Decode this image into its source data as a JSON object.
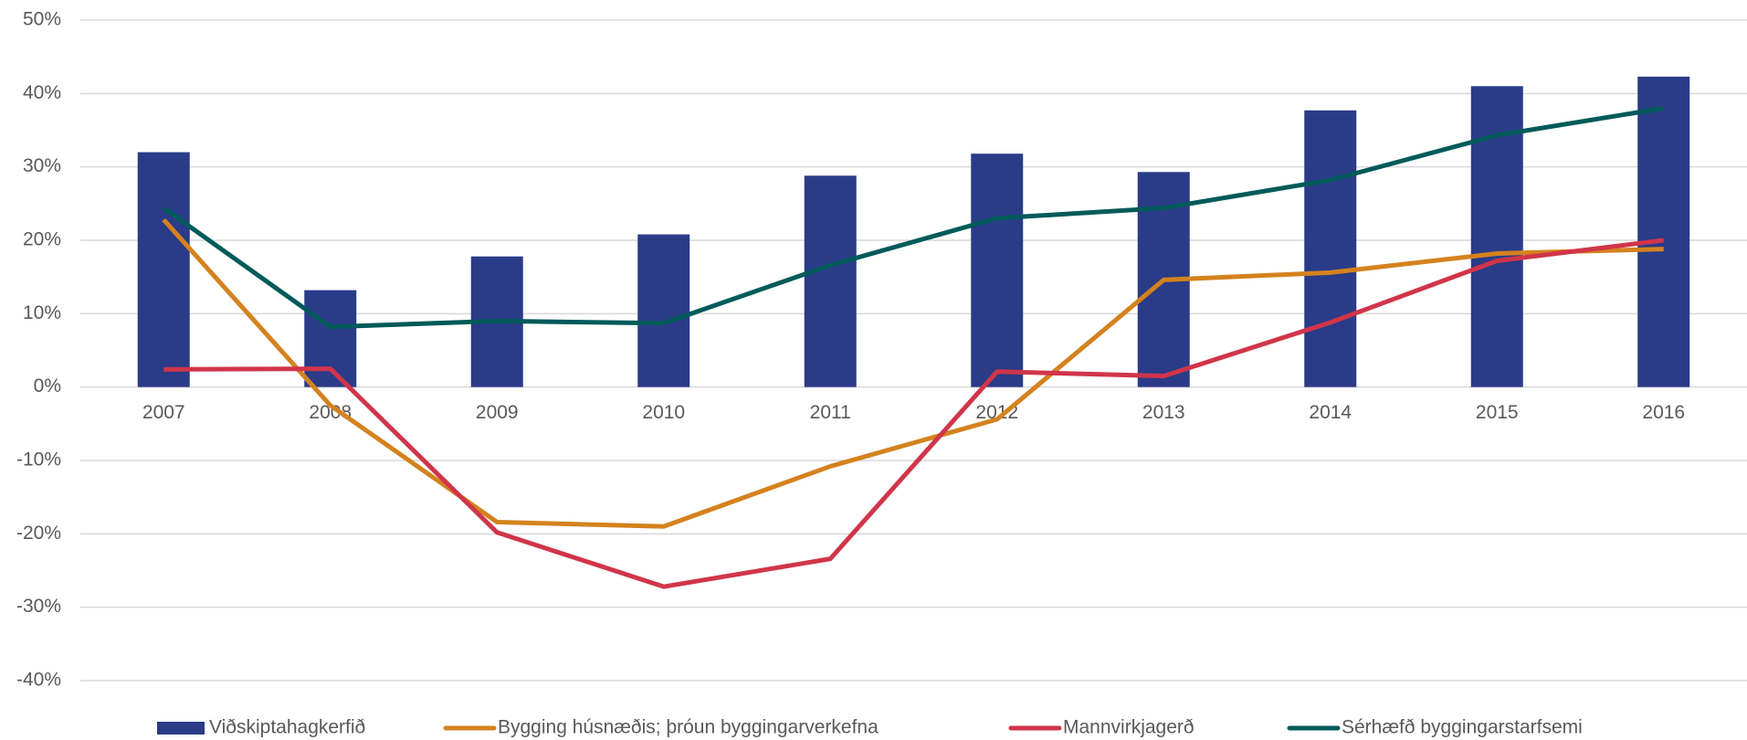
{
  "chart_data": {
    "type": "bar",
    "categories": [
      "2007",
      "2008",
      "2009",
      "2010",
      "2011",
      "2012",
      "2013",
      "2014",
      "2015",
      "2016"
    ],
    "series": [
      {
        "name": "Viðskiptahagkerfið",
        "type": "bar",
        "color": "#2a3b88",
        "values": [
          32,
          13.2,
          17.8,
          20.8,
          28.8,
          31.8,
          29.3,
          37.7,
          41,
          42.3
        ]
      },
      {
        "name": "Bygging húsnæðis; þróun byggingarverkefna",
        "type": "line",
        "color": "#d4821e",
        "values": [
          22.8,
          -2.5,
          -18.4,
          -19,
          -10.8,
          -4.4,
          14.6,
          15.6,
          18.2,
          18.8
        ]
      },
      {
        "name": "Mannvirkjagerð",
        "type": "line",
        "color": "#d0354a",
        "values": [
          2.4,
          2.5,
          -19.8,
          -27.2,
          -23.4,
          2.1,
          1.5,
          8.8,
          17.2,
          20
        ]
      },
      {
        "name": "Sérhæfð byggingarstarfsemi",
        "type": "line",
        "color": "#005a5a",
        "values": [
          24.4,
          8.2,
          9,
          8.7,
          16.6,
          23,
          24.4,
          28.2,
          34.3,
          38
        ]
      }
    ],
    "ylim": [
      -40,
      50
    ],
    "yticks": [
      {
        "value": -40,
        "label": "-40%"
      },
      {
        "value": -30,
        "label": "-30%"
      },
      {
        "value": -20,
        "label": "-20%"
      },
      {
        "value": -10,
        "label": "-10%"
      },
      {
        "value": 0,
        "label": "0%"
      },
      {
        "value": 10,
        "label": "10%"
      },
      {
        "value": 20,
        "label": "20%"
      },
      {
        "value": 30,
        "label": "30%"
      },
      {
        "value": 40,
        "label": "40%"
      },
      {
        "value": 50,
        "label": "50%"
      }
    ],
    "grid": true,
    "legend": "bottom"
  }
}
